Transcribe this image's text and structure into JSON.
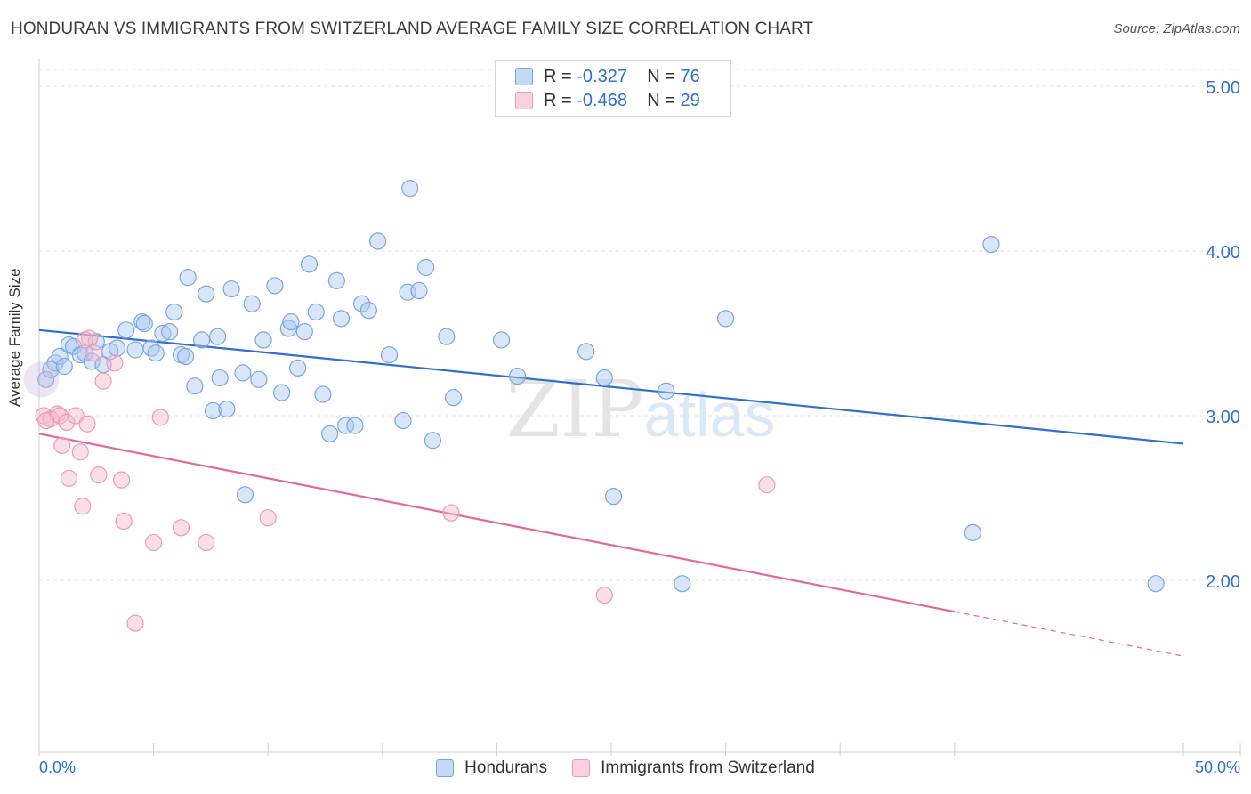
{
  "title": "HONDURAN VS IMMIGRANTS FROM SWITZERLAND AVERAGE FAMILY SIZE CORRELATION CHART",
  "source": "Source: ZipAtlas.com",
  "watermark": "ZIPatlas",
  "legend_top": [
    {
      "r_label": "R =",
      "r_value": "-0.327",
      "n_label": "N =",
      "n_value": "76",
      "color": "#a8c8f0"
    },
    {
      "r_label": "R =",
      "r_value": "-0.468",
      "n_label": "N =",
      "n_value": "29",
      "color": "#f6b8cc"
    }
  ],
  "colors": {
    "blue": "#2f6fd1",
    "blue_fill": "#a8c8f0",
    "pink": "#e46a95",
    "pink_fill": "#f6b8cc",
    "tick_label": "#2f6fd1"
  },
  "chart_data": {
    "type": "scatter",
    "title": "HONDURAN VS IMMIGRANTS FROM SWITZERLAND AVERAGE FAMILY SIZE CORRELATION CHART",
    "xlabel": "",
    "ylabel": "Average Family Size",
    "xlim": [
      0,
      50
    ],
    "ylim": [
      1.0,
      5.1
    ],
    "x_tick_labels": [
      "0.0%",
      "50.0%"
    ],
    "y_ticks": [
      2.0,
      3.0,
      4.0,
      5.0
    ],
    "y_tick_labels": [
      "2.00",
      "3.00",
      "4.00",
      "5.00"
    ],
    "grid": true,
    "legend_position": "bottom",
    "series": [
      {
        "name": "Hondurans",
        "color": "#a8c8f0",
        "trend": {
          "x": [
            0,
            50
          ],
          "y": [
            3.52,
            2.83
          ]
        },
        "points": [
          [
            0.3,
            3.22
          ],
          [
            0.5,
            3.28
          ],
          [
            0.7,
            3.32
          ],
          [
            0.9,
            3.36
          ],
          [
            1.1,
            3.3
          ],
          [
            1.3,
            3.43
          ],
          [
            1.5,
            3.42
          ],
          [
            1.8,
            3.37
          ],
          [
            2.0,
            3.38
          ],
          [
            2.3,
            3.33
          ],
          [
            2.5,
            3.45
          ],
          [
            2.8,
            3.31
          ],
          [
            3.1,
            3.39
          ],
          [
            3.4,
            3.41
          ],
          [
            3.8,
            3.52
          ],
          [
            4.2,
            3.4
          ],
          [
            4.5,
            3.57
          ],
          [
            4.6,
            3.56
          ],
          [
            4.9,
            3.41
          ],
          [
            5.1,
            3.38
          ],
          [
            5.4,
            3.5
          ],
          [
            5.7,
            3.51
          ],
          [
            5.9,
            3.63
          ],
          [
            6.2,
            3.37
          ],
          [
            6.4,
            3.36
          ],
          [
            6.5,
            3.84
          ],
          [
            6.8,
            3.18
          ],
          [
            7.1,
            3.46
          ],
          [
            7.3,
            3.74
          ],
          [
            7.6,
            3.03
          ],
          [
            7.8,
            3.48
          ],
          [
            7.9,
            3.23
          ],
          [
            8.2,
            3.04
          ],
          [
            8.4,
            3.77
          ],
          [
            8.9,
            3.26
          ],
          [
            9.3,
            3.68
          ],
          [
            9.6,
            3.22
          ],
          [
            9.8,
            3.46
          ],
          [
            10.3,
            3.79
          ],
          [
            10.6,
            3.14
          ],
          [
            10.9,
            3.53
          ],
          [
            11.3,
            3.29
          ],
          [
            11.6,
            3.51
          ],
          [
            11.8,
            3.92
          ],
          [
            12.1,
            3.63
          ],
          [
            12.4,
            3.13
          ],
          [
            12.7,
            2.89
          ],
          [
            13.0,
            3.82
          ],
          [
            13.2,
            3.59
          ],
          [
            13.4,
            2.94
          ],
          [
            13.8,
            2.94
          ],
          [
            14.1,
            3.68
          ],
          [
            14.4,
            3.64
          ],
          [
            14.8,
            4.06
          ],
          [
            15.3,
            3.37
          ],
          [
            15.9,
            2.97
          ],
          [
            16.1,
            3.75
          ],
          [
            16.2,
            4.38
          ],
          [
            16.6,
            3.76
          ],
          [
            16.9,
            3.9
          ],
          [
            17.2,
            2.85
          ],
          [
            17.8,
            3.48
          ],
          [
            18.1,
            3.11
          ],
          [
            20.2,
            3.46
          ],
          [
            20.9,
            3.24
          ],
          [
            23.9,
            3.39
          ],
          [
            24.7,
            3.23
          ],
          [
            25.1,
            2.51
          ],
          [
            27.4,
            3.15
          ],
          [
            28.1,
            1.98
          ],
          [
            30.0,
            3.59
          ],
          [
            40.8,
            2.29
          ],
          [
            41.6,
            4.04
          ],
          [
            48.8,
            1.98
          ],
          [
            9.0,
            2.52
          ],
          [
            11.0,
            3.57
          ]
        ]
      },
      {
        "name": "Immigrants from Switzerland",
        "color": "#f6b8cc",
        "trend": {
          "x": [
            0,
            40
          ],
          "y": [
            2.89,
            1.81
          ]
        },
        "trend_dashed": {
          "x": [
            40,
            50
          ],
          "y": [
            1.81,
            1.54
          ]
        },
        "points": [
          [
            0.2,
            3.0
          ],
          [
            0.5,
            2.98
          ],
          [
            0.8,
            3.01
          ],
          [
            0.9,
            3.0
          ],
          [
            1.0,
            2.82
          ],
          [
            1.2,
            2.96
          ],
          [
            1.3,
            2.62
          ],
          [
            1.6,
            3.0
          ],
          [
            1.8,
            2.78
          ],
          [
            1.9,
            2.45
          ],
          [
            2.1,
            2.95
          ],
          [
            2.2,
            3.47
          ],
          [
            2.4,
            3.38
          ],
          [
            2.6,
            2.64
          ],
          [
            2.8,
            3.21
          ],
          [
            3.3,
            3.32
          ],
          [
            3.6,
            2.61
          ],
          [
            3.7,
            2.36
          ],
          [
            4.2,
            1.74
          ],
          [
            5.0,
            2.23
          ],
          [
            5.3,
            2.99
          ],
          [
            6.2,
            2.32
          ],
          [
            7.3,
            2.23
          ],
          [
            10.0,
            2.38
          ],
          [
            18.0,
            2.41
          ],
          [
            24.7,
            1.91
          ],
          [
            31.8,
            2.58
          ],
          [
            0.3,
            2.97
          ],
          [
            2.0,
            3.46
          ]
        ]
      }
    ]
  },
  "bottom_legend": [
    {
      "label": "Hondurans",
      "color": "#a8c8f0"
    },
    {
      "label": "Immigrants from Switzerland",
      "color": "#f6b8cc"
    }
  ]
}
